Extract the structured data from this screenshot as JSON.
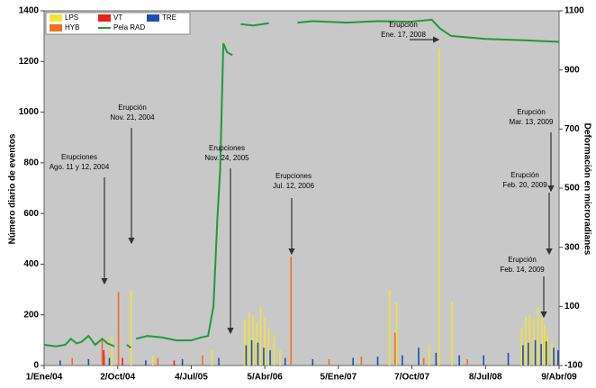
{
  "chart_data": {
    "type": "bar_line",
    "ylabel": "Número diario de eventos",
    "y2label": "Deformación en microradianes",
    "xlim": [
      "2004-01-01",
      "2009-04-09"
    ],
    "xticks": [
      {
        "value": "2004-01-01",
        "label": "1/Ene/04"
      },
      {
        "value": "2004-10-02",
        "label": "2/Oct/04"
      },
      {
        "value": "2005-07-04",
        "label": "4/Jul/05"
      },
      {
        "value": "2006-04-05",
        "label": "5/Abr/06"
      },
      {
        "value": "2007-01-05",
        "label": "5/Ene/07"
      },
      {
        "value": "2007-10-07",
        "label": "7/Oct/07"
      },
      {
        "value": "2008-07-08",
        "label": "8/Jul/08"
      },
      {
        "value": "2009-04-09",
        "label": "9/Abr/09"
      }
    ],
    "ylim": [
      0,
      1400
    ],
    "yticks": [
      0,
      200,
      400,
      600,
      800,
      1000,
      1200,
      1400
    ],
    "y2lim": [
      -100,
      1100
    ],
    "y2ticks": [
      -100,
      100,
      300,
      500,
      700,
      900,
      1100
    ],
    "grid": false,
    "legend": "upper left",
    "background": "#c8c8c8",
    "series": [
      {
        "name": "LPS",
        "color": "#f2e33a",
        "type": "bar",
        "x": [
          "2004-09-10",
          "2004-11-21",
          "2005-02-10",
          "2005-09-20",
          "2006-01-20",
          "2006-02-05",
          "2006-02-20",
          "2006-03-05",
          "2006-03-20",
          "2006-04-05",
          "2006-04-20",
          "2006-05-10",
          "2006-06-01",
          "2007-07-15",
          "2007-08-10",
          "2007-12-10",
          "2008-01-17",
          "2008-03-05",
          "2008-11-20",
          "2008-12-05",
          "2008-12-20",
          "2009-01-05",
          "2009-01-20",
          "2009-02-05",
          "2009-02-14",
          "2009-02-25",
          "2009-03-13"
        ],
        "values": [
          120,
          300,
          40,
          60,
          180,
          210,
          200,
          170,
          230,
          190,
          150,
          120,
          60,
          300,
          250,
          80,
          1250,
          250,
          150,
          190,
          200,
          180,
          230,
          190,
          160,
          120,
          90
        ]
      },
      {
        "name": "VT",
        "color": "#e8201c",
        "type": "bar",
        "x": [
          "2004-08-11",
          "2004-08-12",
          "2004-10-20",
          "2005-05-01"
        ],
        "values": [
          60,
          40,
          30,
          20
        ]
      },
      {
        "name": "TRE",
        "color": "#1f4fa8",
        "type": "bar",
        "x": [
          "2004-03-01",
          "2004-06-15",
          "2004-09-01",
          "2005-01-15",
          "2005-06-01",
          "2005-10-15",
          "2006-01-25",
          "2006-02-15",
          "2006-03-10",
          "2006-04-01",
          "2006-04-25",
          "2006-06-20",
          "2006-10-01",
          "2007-03-01",
          "2007-06-01",
          "2007-09-01",
          "2007-11-01",
          "2008-01-05",
          "2008-04-01",
          "2008-07-01",
          "2008-10-01",
          "2008-11-25",
          "2008-12-15",
          "2009-01-10",
          "2009-02-01",
          "2009-02-20",
          "2009-03-20",
          "2009-04-05"
        ],
        "values": [
          20,
          25,
          30,
          20,
          25,
          30,
          80,
          100,
          90,
          70,
          60,
          30,
          25,
          30,
          35,
          40,
          70,
          50,
          40,
          40,
          50,
          80,
          90,
          100,
          85,
          95,
          70,
          60
        ]
      },
      {
        "name": "HYB",
        "color": "#f07020",
        "type": "bar",
        "x": [
          "2004-04-15",
          "2004-08-05",
          "2004-10-05",
          "2005-03-01",
          "2005-08-15",
          "2006-07-12",
          "2006-12-01",
          "2007-04-01",
          "2007-08-05",
          "2007-11-20",
          "2008-05-01"
        ],
        "values": [
          30,
          100,
          290,
          30,
          40,
          430,
          25,
          35,
          130,
          30,
          25
        ]
      },
      {
        "name": "Pela RAD",
        "color": "#1f9a3c",
        "type": "line",
        "axis": "y2",
        "x": [
          "2004-01-01",
          "2004-02-15",
          "2004-03-20",
          "2004-04-10",
          "2004-05-01",
          "2004-05-20",
          "2004-06-15",
          "2004-07-10",
          "2004-08-05",
          "2004-08-25",
          "2004-09-20",
          "2004-10-10",
          "2004-11-05",
          "2004-11-20",
          "2004-12-01",
          "2004-12-10",
          "2005-01-20",
          "2005-03-15",
          "2005-05-10",
          "2005-07-04",
          "2005-08-10",
          "2005-09-05",
          "2005-09-25",
          "2005-10-10",
          "2005-10-20",
          "2005-11-01",
          "2005-11-15",
          "2005-12-05",
          "2005-12-20",
          "2006-01-05",
          "2006-02-20",
          "2006-04-20",
          "2006-05-01",
          "2006-08-05",
          "2006-10-01",
          "2007-02-01",
          "2007-06-01",
          "2007-10-01",
          "2007-12-20",
          "2008-01-20",
          "2008-03-01",
          "2008-07-08",
          "2008-12-01",
          "2009-04-09"
        ],
        "values": [
          -30,
          -35,
          -30,
          -10,
          -25,
          -20,
          0,
          -30,
          -10,
          -25,
          -35,
          null,
          -30,
          -40,
          null,
          -10,
          0,
          -5,
          -15,
          -15,
          -5,
          0,
          100,
          400,
          560,
          990,
          960,
          950,
          null,
          1055,
          1050,
          1058,
          null,
          1060,
          1065,
          1060,
          1065,
          1063,
          1070,
          1040,
          1015,
          1005,
          1000,
          995
        ]
      }
    ],
    "annotations": [
      [
        "Erupciones",
        "Ago. 11 y 12, 2004"
      ],
      [
        "Erupción",
        "Nov. 21, 2004"
      ],
      [
        "Erupciones",
        "Nov. 24, 2005"
      ],
      [
        "Erupciones",
        "Jul. 12, 2006"
      ],
      [
        "Erupción",
        "Ene. 17, 2008"
      ],
      [
        "Erupción",
        "Mar. 13, 2009"
      ],
      [
        "Erupción",
        "Feb. 20, 2009"
      ],
      [
        "Erupción",
        "Feb. 14, 2009"
      ]
    ]
  }
}
